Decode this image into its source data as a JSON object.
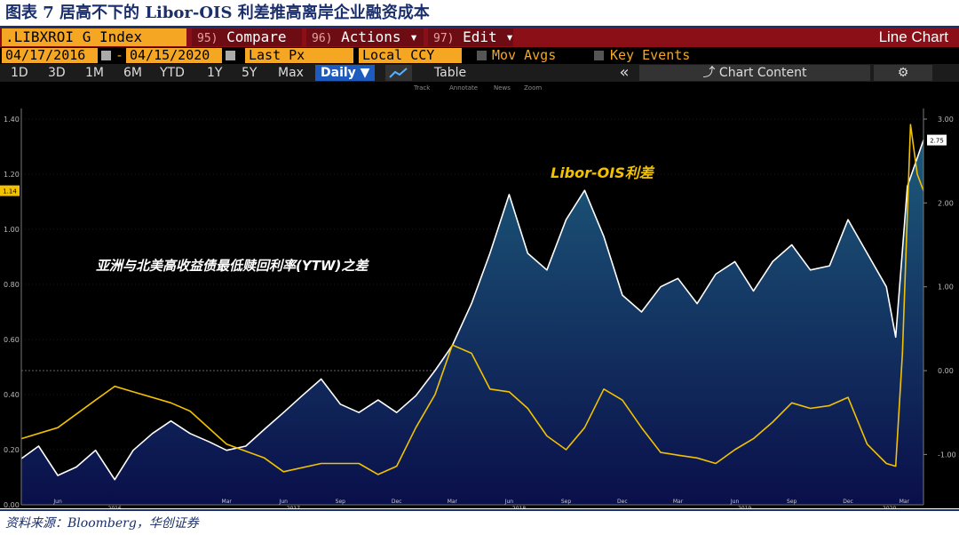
{
  "figure_title": "图表 7 居高不下的 Libor-OIS 利差推高离岸企业融资成本",
  "source": "资料来源：Bloomberg，华创证券",
  "toolbar": {
    "ticker": ".LIBXROI G Index",
    "compare": {
      "num": "95)",
      "label": "Compare"
    },
    "actions": {
      "num": "96)",
      "label": "Actions",
      "caret": "▾"
    },
    "edit": {
      "num": "97)",
      "label": "Edit",
      "caret": "▾"
    },
    "chart_type": "Line Chart"
  },
  "range_bar": {
    "start_date": "04/17/2016",
    "end_date": "04/15/2020",
    "dash": "-",
    "field": "Last Px",
    "currency": "Local CCY",
    "mov_avgs": "Mov Avgs",
    "key_events": "Key Events"
  },
  "period_bar": {
    "periods": [
      "1D",
      "3D",
      "1M",
      "6M",
      "YTD",
      "1Y",
      "5Y",
      "Max"
    ],
    "frequency": "Daily ▼",
    "table": "Table",
    "collapse": "«",
    "chart_content": "Chart Content",
    "settings": "⚙"
  },
  "mini_toolbar": [
    "Track",
    "Annotate",
    "News",
    "Zoom"
  ],
  "colors": {
    "white_series": "#ffffff",
    "yellow_series": "#f2c200",
    "area_fill_top": "#1d5a7a",
    "area_fill_bottom": "#0a0f4a",
    "brand_bar": "#8b0f16",
    "amber": "#f5a623"
  },
  "chart_data": {
    "type": "line",
    "annotations": [
      "Libor-OIS利差",
      "亚洲与北美高收益债最低赎回利率(YTW)之差"
    ],
    "x_axis": {
      "range": [
        "2016-04-17",
        "2020-04-15"
      ],
      "month_ticks": [
        "Jun",
        "Sep",
        "Dec",
        "Mar",
        "Jun",
        "Sep",
        "Dec",
        "Mar",
        "Jun",
        "Sep",
        "Dec",
        "Mar",
        "Jun",
        "Sep",
        "Dec",
        "Mar"
      ],
      "year_labels": [
        "2016",
        "2017",
        "2018",
        "2019",
        "2020"
      ]
    },
    "y_left": {
      "ticks": [
        "0.00",
        "0.20",
        "0.40",
        "0.60",
        "0.80",
        "1.00",
        "1.20",
        "1.40"
      ],
      "ylim": [
        0,
        1.4
      ],
      "last_value_label": "1.14"
    },
    "y_right": {
      "ticks": [
        "-1.00",
        "0.00",
        "1.00",
        "2.00",
        "3.00"
      ],
      "ylim": [
        -1.6,
        3.0
      ],
      "last_value_label": "2.75"
    },
    "series": [
      {
        "axis": "right",
        "color": "#ffffff",
        "fill": true,
        "points": [
          [
            "2016-04-17",
            -1.05
          ],
          [
            "2016-05-15",
            -0.9
          ],
          [
            "2016-06-15",
            -1.25
          ],
          [
            "2016-07-15",
            -1.15
          ],
          [
            "2016-08-15",
            -0.95
          ],
          [
            "2016-09-15",
            -1.3
          ],
          [
            "2016-10-15",
            -0.95
          ],
          [
            "2016-11-15",
            -0.75
          ],
          [
            "2016-12-15",
            -0.6
          ],
          [
            "2017-01-15",
            -0.75
          ],
          [
            "2017-02-15",
            -0.85
          ],
          [
            "2017-03-15",
            -0.95
          ],
          [
            "2017-04-15",
            -0.9
          ],
          [
            "2017-05-15",
            -0.7
          ],
          [
            "2017-06-15",
            -0.5
          ],
          [
            "2017-07-15",
            -0.3
          ],
          [
            "2017-08-15",
            -0.1
          ],
          [
            "2017-09-15",
            -0.4
          ],
          [
            "2017-10-15",
            -0.5
          ],
          [
            "2017-11-15",
            -0.35
          ],
          [
            "2017-12-15",
            -0.5
          ],
          [
            "2018-01-15",
            -0.3
          ],
          [
            "2018-02-15",
            0.0
          ],
          [
            "2018-03-15",
            0.3
          ],
          [
            "2018-04-15",
            0.8
          ],
          [
            "2018-05-15",
            1.4
          ],
          [
            "2018-06-15",
            2.1
          ],
          [
            "2018-07-15",
            1.4
          ],
          [
            "2018-08-15",
            1.2
          ],
          [
            "2018-09-15",
            1.8
          ],
          [
            "2018-10-15",
            2.15
          ],
          [
            "2018-11-15",
            1.6
          ],
          [
            "2018-12-15",
            0.9
          ],
          [
            "2019-01-15",
            0.7
          ],
          [
            "2019-02-15",
            1.0
          ],
          [
            "2019-03-15",
            1.1
          ],
          [
            "2019-04-15",
            0.8
          ],
          [
            "2019-05-15",
            1.15
          ],
          [
            "2019-06-15",
            1.3
          ],
          [
            "2019-07-15",
            0.95
          ],
          [
            "2019-08-15",
            1.3
          ],
          [
            "2019-09-15",
            1.5
          ],
          [
            "2019-10-15",
            1.2
          ],
          [
            "2019-11-15",
            1.25
          ],
          [
            "2019-12-15",
            1.8
          ],
          [
            "2020-01-15",
            1.4
          ],
          [
            "2020-02-15",
            1.0
          ],
          [
            "2020-03-01",
            0.4
          ],
          [
            "2020-03-20",
            2.2
          ],
          [
            "2020-04-15",
            2.75
          ]
        ]
      },
      {
        "axis": "left",
        "color": "#f2c200",
        "fill": false,
        "points": [
          [
            "2016-04-17",
            0.24
          ],
          [
            "2016-06-15",
            0.28
          ],
          [
            "2016-08-15",
            0.38
          ],
          [
            "2016-09-15",
            0.43
          ],
          [
            "2016-10-15",
            0.41
          ],
          [
            "2016-12-15",
            0.37
          ],
          [
            "2017-01-15",
            0.34
          ],
          [
            "2017-03-15",
            0.22
          ],
          [
            "2017-05-15",
            0.17
          ],
          [
            "2017-06-15",
            0.12
          ],
          [
            "2017-08-15",
            0.15
          ],
          [
            "2017-10-15",
            0.15
          ],
          [
            "2017-11-15",
            0.11
          ],
          [
            "2017-12-15",
            0.14
          ],
          [
            "2018-01-15",
            0.28
          ],
          [
            "2018-02-15",
            0.4
          ],
          [
            "2018-03-15",
            0.58
          ],
          [
            "2018-04-15",
            0.55
          ],
          [
            "2018-05-15",
            0.42
          ],
          [
            "2018-06-15",
            0.41
          ],
          [
            "2018-07-15",
            0.35
          ],
          [
            "2018-08-15",
            0.25
          ],
          [
            "2018-09-15",
            0.2
          ],
          [
            "2018-10-15",
            0.28
          ],
          [
            "2018-11-15",
            0.42
          ],
          [
            "2018-12-15",
            0.38
          ],
          [
            "2019-01-15",
            0.28
          ],
          [
            "2019-02-15",
            0.19
          ],
          [
            "2019-03-15",
            0.18
          ],
          [
            "2019-04-15",
            0.17
          ],
          [
            "2019-05-15",
            0.15
          ],
          [
            "2019-06-15",
            0.2
          ],
          [
            "2019-07-15",
            0.24
          ],
          [
            "2019-08-15",
            0.3
          ],
          [
            "2019-09-15",
            0.37
          ],
          [
            "2019-10-15",
            0.35
          ],
          [
            "2019-11-15",
            0.36
          ],
          [
            "2019-12-15",
            0.39
          ],
          [
            "2020-01-15",
            0.22
          ],
          [
            "2020-02-15",
            0.15
          ],
          [
            "2020-03-01",
            0.14
          ],
          [
            "2020-03-12",
            0.55
          ],
          [
            "2020-03-25",
            1.38
          ],
          [
            "2020-04-05",
            1.2
          ],
          [
            "2020-04-15",
            1.14
          ]
        ]
      }
    ]
  }
}
